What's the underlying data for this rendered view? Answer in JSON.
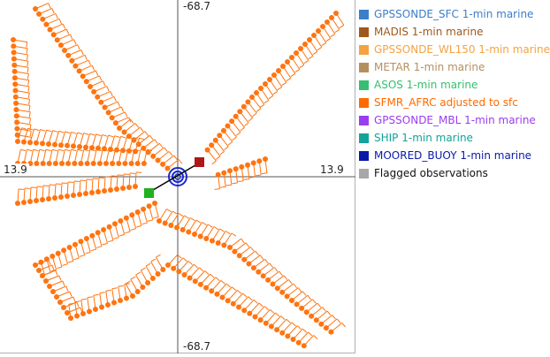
{
  "axes": {
    "top_label": "-68.7",
    "bottom_label": "-68.7",
    "left_label": "13.9",
    "right_label": "13.9"
  },
  "legend": [
    {
      "label": "GPSSONDE_SFC 1-min marine",
      "swatch": "#3c7ec8",
      "text_color": "#3c7ec8"
    },
    {
      "label": "MADIS 1-min marine",
      "swatch": "#a0581c",
      "text_color": "#a0581c"
    },
    {
      "label": "GPSSONDE_WL150 1-min marine",
      "swatch": "#f4a340",
      "text_color": "#f4a340"
    },
    {
      "label": "METAR 1-min marine",
      "swatch": "#b49060",
      "text_color": "#b49060"
    },
    {
      "label": "ASOS 1-min marine",
      "swatch": "#34c070",
      "text_color": "#34c070"
    },
    {
      "label": "SFMR_AFRC adjusted to sfc",
      "swatch": "#ff6a00",
      "text_color": "#ff6a00"
    },
    {
      "label": "GPSSONDE_MBL 1-min marine",
      "swatch": "#9b3cf0",
      "text_color": "#9b3cf0"
    },
    {
      "label": "SHIP 1-min marine",
      "swatch": "#12a39b",
      "text_color": "#12a39b"
    },
    {
      "label": "MOORED_BUOY 1-min marine",
      "swatch": "#0a1aa8",
      "text_color": "#0a1aa8"
    },
    {
      "label": "Flagged observations",
      "swatch": "#a8a8a8",
      "text_color": "#111111"
    }
  ],
  "colors": {
    "sfmr": "#ff7410",
    "center_ring": "#1a2ad0",
    "red_marker": "#b01818",
    "green_marker": "#20b020",
    "axis": "#555555"
  }
}
